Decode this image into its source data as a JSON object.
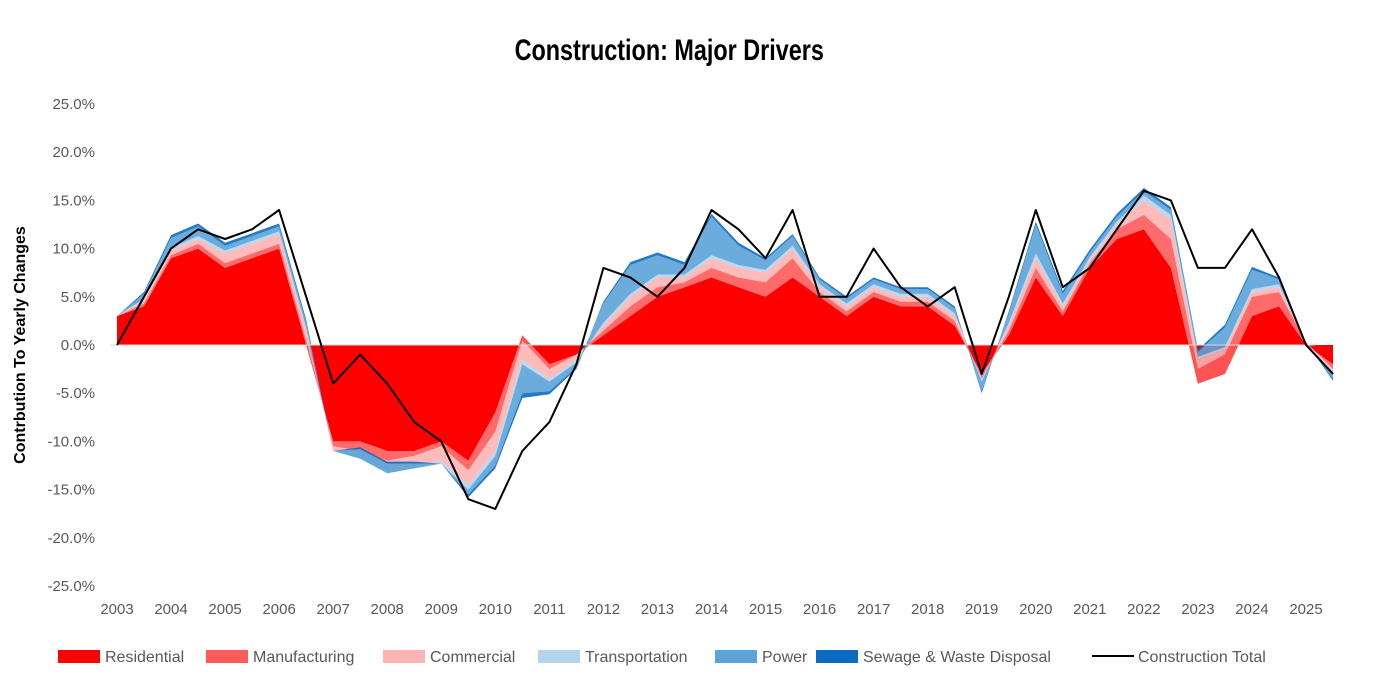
{
  "chart_data": {
    "type": "area",
    "stacked": true,
    "title": "Construction: Major Drivers",
    "xlabel": "",
    "ylabel": "Contrbution To Yearly Changes",
    "ylim": [
      -25,
      25
    ],
    "xlim": [
      2003,
      2025.5
    ],
    "y_ticks": [
      "-25.0%",
      "-20.0%",
      "-15.0%",
      "-10.0%",
      "-5.0%",
      "0.0%",
      "5.0%",
      "10.0%",
      "15.0%",
      "20.0%",
      "25.0%"
    ],
    "y_tick_values": [
      -25,
      -20,
      -15,
      -10,
      -5,
      0,
      5,
      10,
      15,
      20,
      25
    ],
    "x_ticks": [
      "2003",
      "2004",
      "2005",
      "2006",
      "2007",
      "2008",
      "2009",
      "2010",
      "2011",
      "2012",
      "2013",
      "2014",
      "2015",
      "2016",
      "2017",
      "2018",
      "2019",
      "2020",
      "2021",
      "2022",
      "2023",
      "2024",
      "2025"
    ],
    "legend_position": "bottom",
    "grid": false,
    "x": [
      2003,
      2003.5,
      2004,
      2004.5,
      2005,
      2005.5,
      2006,
      2006.5,
      2007,
      2007.5,
      2008,
      2008.5,
      2009,
      2009.5,
      2010,
      2010.5,
      2011,
      2011.5,
      2012,
      2012.5,
      2013,
      2013.5,
      2014,
      2014.5,
      2015,
      2015.5,
      2016,
      2016.5,
      2017,
      2017.5,
      2018,
      2018.5,
      2019,
      2019.5,
      2020,
      2020.5,
      2021,
      2021.5,
      2022,
      2022.5,
      2023,
      2023.5,
      2024,
      2024.5,
      2025,
      2025.5
    ],
    "series": [
      {
        "name": "Residential",
        "color": "#FF0000",
        "values": [
          3,
          4,
          9,
          10,
          8,
          9,
          10,
          0,
          -10,
          -10,
          -11,
          -11,
          -10,
          -12,
          -7,
          1,
          -2,
          -1,
          1,
          3,
          5,
          6,
          7,
          6,
          5,
          7,
          5,
          3,
          5,
          4,
          4,
          2,
          -3,
          1,
          7,
          3,
          8,
          11,
          12,
          8,
          -4,
          -3,
          3,
          4,
          0,
          -2
        ]
      },
      {
        "name": "Manufacturing",
        "color": "#FF5B5B",
        "values": [
          0,
          0.3,
          0.3,
          0.5,
          0.5,
          0.5,
          0.5,
          0.5,
          -0.5,
          -1,
          -1,
          -0.5,
          -0.5,
          -1,
          -2,
          -0.5,
          -0.5,
          0,
          0.5,
          1,
          1,
          0.5,
          1,
          1,
          1.5,
          2,
          0.5,
          0.5,
          0.5,
          0.5,
          0.5,
          0.5,
          -0.5,
          0.5,
          1,
          0.5,
          0.5,
          1,
          1.5,
          3,
          1.5,
          2,
          2,
          1.5,
          0.3,
          -0.5
        ]
      },
      {
        "name": "Commercial",
        "color": "#FFB3B3",
        "values": [
          0,
          0.3,
          0.5,
          0.5,
          1,
          1,
          1,
          1,
          -0.5,
          -0.5,
          -1,
          -1,
          -1.5,
          -1.5,
          -2,
          -2,
          -1,
          -0.5,
          0.5,
          1,
          1,
          0.5,
          1,
          1,
          1,
          1,
          0.5,
          0.5,
          0.5,
          0.5,
          0.5,
          0.5,
          0,
          0.5,
          1,
          0.5,
          0.3,
          0.5,
          1.5,
          2,
          1,
          0.5,
          0.5,
          0.5,
          0,
          -0.3
        ]
      },
      {
        "name": "Transportation",
        "color": "#B4D4EE",
        "values": [
          0,
          0.2,
          0.3,
          0.3,
          0.3,
          0.3,
          0.3,
          0.3,
          0,
          -0.3,
          -0.3,
          -0.3,
          -0.3,
          -0.5,
          -0.5,
          -0.5,
          -0.3,
          -0.3,
          0.3,
          0.3,
          0.3,
          0.3,
          0.3,
          0.3,
          0.3,
          0.3,
          0.3,
          0.3,
          0.3,
          0.3,
          0.3,
          0.3,
          -0.3,
          0.3,
          0.5,
          0.3,
          0.3,
          0.3,
          0.5,
          0.5,
          0.3,
          0.3,
          0.3,
          0.3,
          0,
          -0.2
        ]
      },
      {
        "name": "Power",
        "color": "#5BA3D9",
        "values": [
          0,
          0.5,
          1,
          1,
          0.5,
          0.5,
          0.5,
          0.5,
          0,
          1,
          1,
          0.5,
          0,
          -0.5,
          -1,
          -3,
          -1,
          -0.5,
          2,
          3,
          2,
          1,
          4,
          2,
          1,
          1,
          0.5,
          0.5,
          0.5,
          0.5,
          0.5,
          0.5,
          -1,
          1,
          3,
          1,
          0.5,
          0.5,
          0.5,
          0.5,
          0.5,
          2,
          2,
          0.5,
          0,
          -0.5
        ]
      },
      {
        "name": "Sewage & Waste Disposal",
        "color": "#0B6BC0",
        "values": [
          0,
          0.2,
          0.3,
          0.3,
          0.3,
          0.3,
          0.3,
          0.3,
          0,
          0.2,
          0.2,
          0.2,
          0,
          -0.3,
          -0.3,
          -0.5,
          -0.3,
          -0.2,
          0.2,
          0.3,
          0.3,
          0.3,
          0.3,
          0.3,
          0.2,
          0.2,
          0.2,
          0.2,
          0.2,
          0.2,
          0.2,
          0.2,
          -0.2,
          0.2,
          0.3,
          0.3,
          0.3,
          0.3,
          0.3,
          0.3,
          0.2,
          0.3,
          0.3,
          0.2,
          0,
          -0.2
        ]
      }
    ],
    "line": {
      "name": "Construction Total",
      "color": "#000000",
      "values": [
        0,
        5,
        10,
        12,
        11,
        12,
        14,
        5,
        -4,
        -1,
        -4,
        -8,
        -10,
        -16,
        -17,
        -11,
        -8,
        -2,
        8,
        7,
        5,
        8,
        14,
        12,
        9,
        14,
        5,
        5,
        10,
        6,
        4,
        6,
        -3,
        5,
        14,
        6,
        8,
        12,
        16,
        15,
        8,
        8,
        12,
        7,
        0,
        -3
      ]
    }
  }
}
